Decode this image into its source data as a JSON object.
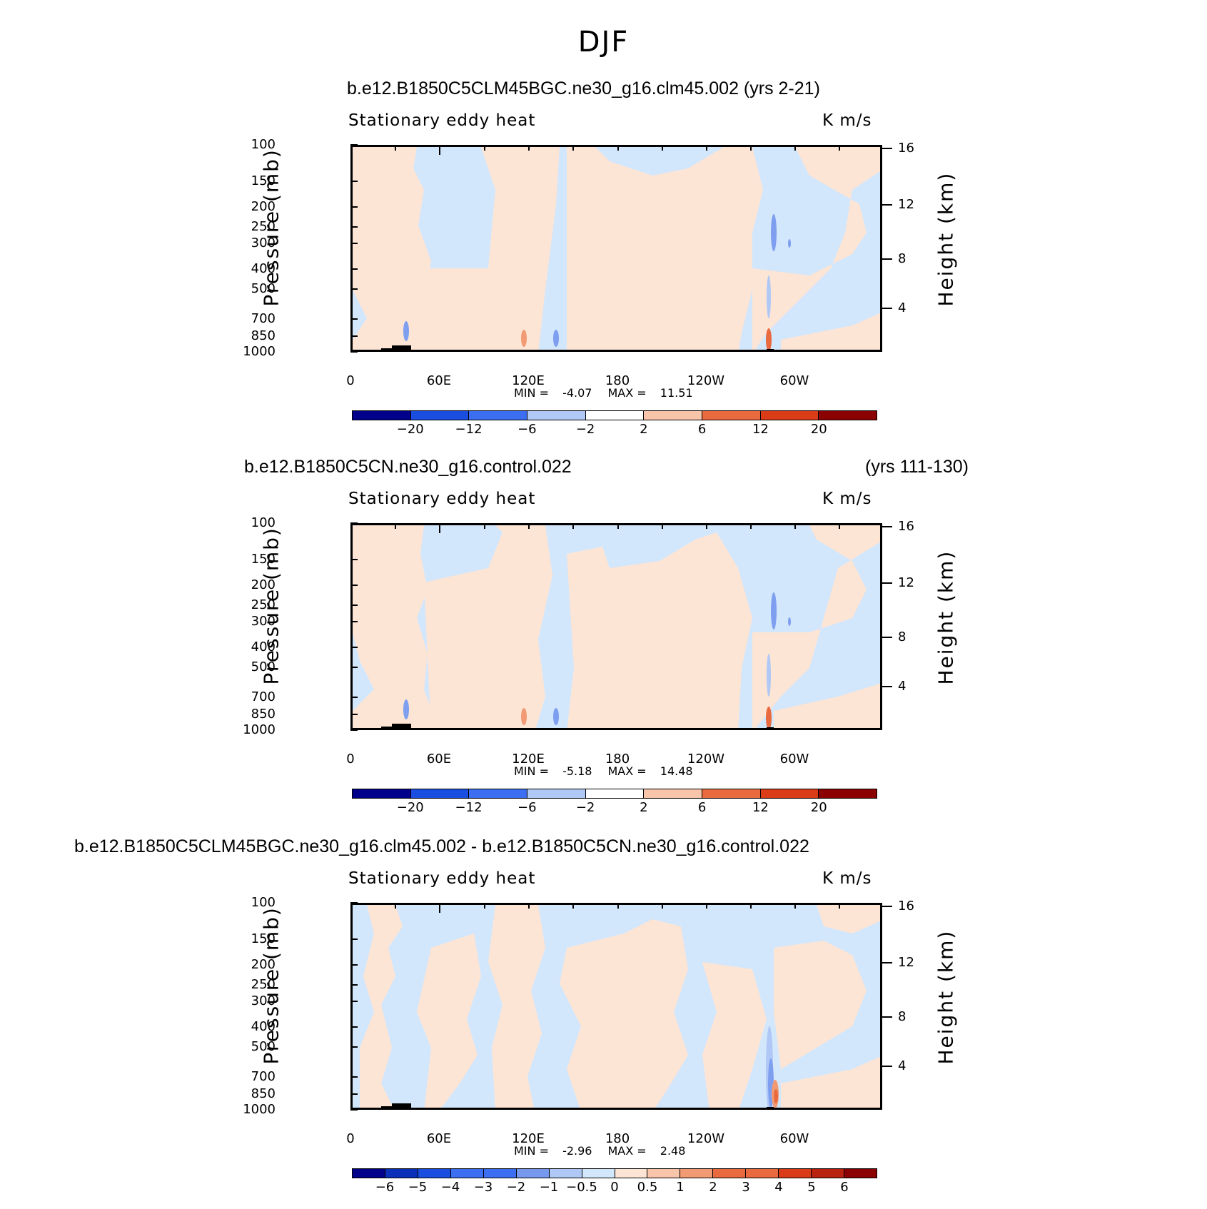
{
  "figure_title": "DJF",
  "colors": {
    "cold_fill": "#d2e6fc",
    "warm_fill": "#fde5d5",
    "orography": "#000000",
    "cbar_cold": [
      "#00008b",
      "#0a2fb8",
      "#1a4ee0",
      "#3b6ef0",
      "#7699ee",
      "#b0c8f5",
      "#d2e6fc"
    ],
    "cbar_warm": [
      "#fde5d5",
      "#f8c4aa",
      "#f19a73",
      "#e86a3e",
      "#d93c17",
      "#ba2210",
      "#8b0000"
    ]
  },
  "panels": [
    {
      "case_title": "b.e12.B1850C5CLM45BGC.ne30_g16.clm45.002 (yrs 2-21)",
      "years": "",
      "subtitle": "Stationary eddy heat",
      "units": "K m/s",
      "min_label": "MIN = ",
      "min_value": "-4.07",
      "max_label": "MAX = ",
      "max_value": "11.51",
      "cbar_labels": [
        "−20",
        "−12",
        "−6",
        "−2",
        "2",
        "6",
        "12",
        "20"
      ]
    },
    {
      "case_title": "b.e12.B1850C5CN.ne30_g16.control.022",
      "years": "(yrs 111-130)",
      "subtitle": "Stationary eddy heat",
      "units": "K m/s",
      "min_label": "MIN = ",
      "min_value": "-5.18",
      "max_label": "MAX = ",
      "max_value": "14.48",
      "cbar_labels": [
        "−20",
        "−12",
        "−6",
        "−2",
        "2",
        "6",
        "12",
        "20"
      ]
    },
    {
      "case_title": "b.e12.B1850C5CLM45BGC.ne30_g16.clm45.002 - b.e12.B1850C5CN.ne30_g16.control.022",
      "years": "",
      "subtitle": "Stationary eddy heat",
      "units": "K m/s",
      "min_label": "MIN = ",
      "min_value": "-2.96",
      "max_label": "MAX = ",
      "max_value": "2.48",
      "cbar_labels": [
        "−6",
        "−5",
        "−4",
        "−3",
        "−2",
        "−1",
        "−0.5",
        "0",
        "0.5",
        "1",
        "2",
        "3",
        "4",
        "5",
        "6"
      ]
    }
  ],
  "axes": {
    "y_title": "Pressure (mb)",
    "y2_title": "Height (km)",
    "y_ticks": [
      "100",
      "150",
      "200",
      "250",
      "300",
      "400",
      "500",
      "700",
      "850",
      "1000"
    ],
    "y2_ticks": [
      "16",
      "12",
      "8",
      "4"
    ],
    "x_ticks": [
      "0",
      "60E",
      "120E",
      "180",
      "120W",
      "60W"
    ]
  },
  "chart_data": [
    {
      "type": "heatmap",
      "title": "b.e12.B1850C5CLM45BGC.ne30_g16.clm45.002 (yrs 2-21)",
      "xlabel": "",
      "ylabel": "Pressure (mb)",
      "y2label": "Height (km)",
      "xlim": [
        0,
        360
      ],
      "ylim": [
        1000,
        100
      ],
      "y_scale": "log",
      "levels": [
        -20,
        -12,
        -6,
        -2,
        2,
        6,
        12,
        20
      ],
      "min": -4.07,
      "max": 11.51,
      "units": "K m/s"
    },
    {
      "type": "heatmap",
      "title": "b.e12.B1850C5CN.ne30_g16.control.022 (yrs 111-130)",
      "xlabel": "",
      "ylabel": "Pressure (mb)",
      "y2label": "Height (km)",
      "xlim": [
        0,
        360
      ],
      "ylim": [
        1000,
        100
      ],
      "y_scale": "log",
      "levels": [
        -20,
        -12,
        -6,
        -2,
        2,
        6,
        12,
        20
      ],
      "min": -5.18,
      "max": 14.48,
      "units": "K m/s"
    },
    {
      "type": "heatmap",
      "title": "b.e12.B1850C5CLM45BGC.ne30_g16.clm45.002 - b.e12.B1850C5CN.ne30_g16.control.022",
      "xlabel": "",
      "ylabel": "Pressure (mb)",
      "y2label": "Height (km)",
      "xlim": [
        0,
        360
      ],
      "ylim": [
        1000,
        100
      ],
      "y_scale": "log",
      "levels": [
        -6,
        -5,
        -4,
        -3,
        -2,
        -1,
        -0.5,
        0,
        0.5,
        1,
        2,
        3,
        4,
        5,
        6
      ],
      "min": -2.96,
      "max": 2.48,
      "units": "K m/s"
    }
  ]
}
